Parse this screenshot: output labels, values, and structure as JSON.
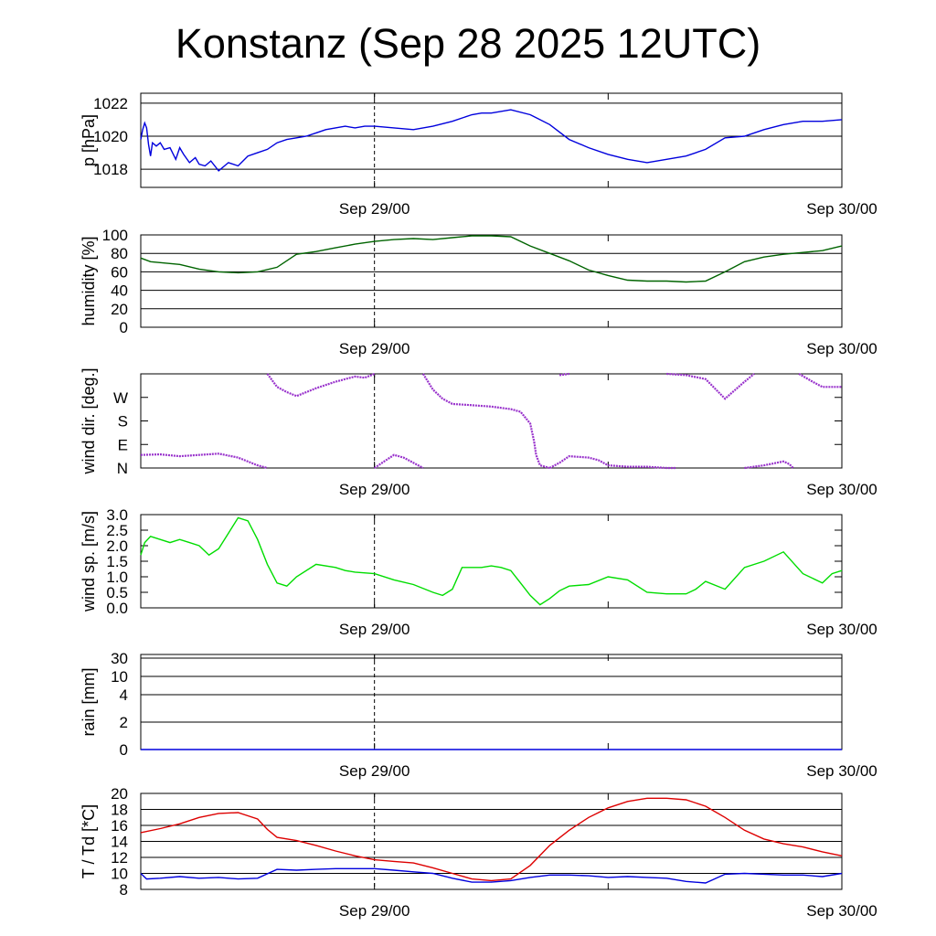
{
  "title": "Konstanz (Sep 28 2025 12UTC)",
  "chart_data": [
    {
      "id": "pressure",
      "type": "line",
      "ylabel": "p [hPa]",
      "x_tick_labels": [
        "Sep 29/00",
        "Sep 30/00"
      ],
      "x_range_hours": [
        0,
        36
      ],
      "ylim": [
        1016.9,
        1022.6
      ],
      "y_ticks": [
        1018,
        1020,
        1022
      ],
      "grid": true,
      "series": [
        {
          "color": "#0000dd",
          "x": [
            0,
            0.1,
            0.2,
            0.3,
            0.4,
            0.5,
            0.6,
            0.8,
            1.0,
            1.2,
            1.5,
            1.8,
            2.0,
            2.2,
            2.5,
            2.8,
            3.0,
            3.3,
            3.6,
            4.0,
            4.5,
            5.0,
            5.5,
            6.0,
            6.5,
            7.0,
            7.5,
            8.0,
            8.5,
            9.0,
            9.5,
            10.0,
            10.5,
            11.0,
            11.5,
            12.0,
            13.0,
            14.0,
            15.0,
            16.0,
            17.0,
            17.5,
            18.0,
            19.0,
            20.0,
            21.0,
            22.0,
            23.0,
            24.0,
            25.0,
            26.0,
            27.0,
            28.0,
            29.0,
            30.0,
            31.0,
            32.0,
            33.0,
            34.0,
            35.0,
            36.0
          ],
          "y": [
            1019.8,
            1020.4,
            1020.8,
            1020.5,
            1019.5,
            1018.8,
            1019.6,
            1019.4,
            1019.6,
            1019.2,
            1019.3,
            1018.6,
            1019.3,
            1018.9,
            1018.4,
            1018.7,
            1018.3,
            1018.2,
            1018.5,
            1017.9,
            1018.4,
            1018.2,
            1018.8,
            1019.0,
            1019.2,
            1019.6,
            1019.8,
            1019.9,
            1020.0,
            1020.2,
            1020.4,
            1020.5,
            1020.6,
            1020.5,
            1020.6,
            1020.6,
            1020.5,
            1020.4,
            1020.6,
            1020.9,
            1021.3,
            1021.4,
            1021.4,
            1021.6,
            1021.3,
            1020.7,
            1019.8,
            1019.3,
            1018.9,
            1018.6,
            1018.4,
            1018.6,
            1018.8,
            1019.2,
            1019.9,
            1020.0,
            1020.4,
            1020.7,
            1020.9,
            1020.9,
            1021.0
          ]
        }
      ]
    },
    {
      "id": "humidity",
      "type": "line",
      "ylabel": "humidity [%]",
      "x_tick_labels": [
        "Sep 29/00",
        "Sep 30/00"
      ],
      "x_range_hours": [
        0,
        36
      ],
      "ylim": [
        0,
        100
      ],
      "y_ticks": [
        0,
        20,
        40,
        60,
        80,
        100
      ],
      "grid": true,
      "series": [
        {
          "color": "#006400",
          "x": [
            0,
            0.5,
            1,
            2,
            3,
            4,
            5,
            6,
            7,
            8,
            9,
            10,
            11,
            12,
            13,
            14,
            15,
            16,
            17,
            18,
            19,
            20,
            21,
            22,
            23,
            24,
            25,
            26,
            27,
            28,
            29,
            30,
            31,
            32,
            33,
            34,
            35,
            36
          ],
          "y": [
            75,
            71,
            70,
            68,
            63,
            60,
            59,
            60,
            65,
            79,
            82,
            86,
            90,
            93,
            95,
            96,
            95,
            97,
            99,
            99,
            98,
            88,
            80,
            72,
            62,
            56,
            51,
            50,
            50,
            49,
            50,
            60,
            71,
            76,
            79,
            81,
            83,
            88
          ]
        }
      ]
    },
    {
      "id": "wind_direction",
      "type": "scatter",
      "ylabel": "wind dir. [deg.]",
      "x_tick_labels": [
        "Sep 29/00",
        "Sep 30/00"
      ],
      "x_range_hours": [
        0,
        36
      ],
      "ylim": [
        0,
        360
      ],
      "y_ticks": [
        0,
        90,
        180,
        270
      ],
      "y_tick_labels": [
        "N",
        "E",
        "S",
        "W"
      ],
      "grid": false,
      "segments": [
        {
          "x": [
            0,
            1,
            2,
            3,
            4,
            5,
            6,
            6.5
          ],
          "y": [
            50,
            52,
            45,
            50,
            55,
            40,
            10,
            0
          ]
        },
        {
          "x": [
            6.5,
            7,
            7.5,
            8,
            9,
            10,
            11,
            11.5,
            12
          ],
          "y": [
            360,
            310,
            290,
            275,
            305,
            330,
            350,
            345,
            360
          ]
        },
        {
          "x": [
            12,
            12.5,
            13,
            13.5,
            14,
            14.5
          ],
          "y": [
            0,
            25,
            50,
            40,
            20,
            0
          ]
        },
        {
          "x": [
            14.5,
            15,
            15.5,
            16,
            17,
            18,
            19,
            19.5,
            20,
            20.2
          ],
          "y": [
            360,
            300,
            265,
            245,
            240,
            235,
            225,
            215,
            170,
            100
          ]
        },
        {
          "x": [
            20.2,
            20.3,
            20.5,
            21
          ],
          "y": [
            100,
            50,
            10,
            0
          ]
        },
        {
          "x": [
            21,
            21.5,
            22,
            23,
            23.5,
            24,
            25,
            26,
            27,
            27.5
          ],
          "y": [
            0,
            20,
            45,
            40,
            30,
            10,
            5,
            5,
            0,
            0
          ]
        },
        {
          "x": [
            21.5,
            22
          ],
          "y": [
            355,
            360
          ]
        },
        {
          "x": [
            27,
            28,
            29,
            30,
            31,
            31.5
          ],
          "y": [
            360,
            355,
            340,
            265,
            330,
            360
          ]
        },
        {
          "x": [
            31,
            32,
            33,
            33.3,
            33.5
          ],
          "y": [
            0,
            10,
            25,
            15,
            0
          ]
        },
        {
          "x": [
            33.8,
            34.5,
            35,
            36
          ],
          "y": [
            360,
            330,
            310,
            310
          ]
        }
      ]
    },
    {
      "id": "wind_speed",
      "type": "line",
      "ylabel": "wind sp. [m/s]",
      "x_tick_labels": [
        "Sep 29/00",
        "Sep 30/00"
      ],
      "x_range_hours": [
        0,
        36
      ],
      "ylim": [
        0,
        3
      ],
      "y_ticks": [
        0.0,
        0.5,
        1.0,
        1.5,
        2.0,
        2.5,
        3.0
      ],
      "grid": false,
      "series": [
        {
          "color": "#00dd00",
          "x": [
            0,
            0.2,
            0.5,
            1,
            1.5,
            2,
            2.5,
            3,
            3.5,
            4,
            4.5,
            5,
            5.5,
            6,
            6.5,
            7,
            7.5,
            8,
            9,
            10,
            10.5,
            11,
            12,
            13,
            14,
            15,
            15.5,
            16,
            16.5,
            17,
            17.5,
            18,
            18.5,
            19,
            19.5,
            20,
            20.5,
            21,
            21.5,
            22,
            23,
            24,
            25,
            26,
            27,
            28,
            28.5,
            29,
            30,
            31,
            32,
            33,
            34,
            35,
            35.5,
            36
          ],
          "y": [
            1.7,
            2.1,
            2.3,
            2.2,
            2.1,
            2.2,
            2.1,
            2.0,
            1.7,
            1.9,
            2.4,
            2.9,
            2.8,
            2.2,
            1.4,
            0.8,
            0.7,
            1.0,
            1.4,
            1.3,
            1.2,
            1.15,
            1.1,
            0.9,
            0.75,
            0.5,
            0.4,
            0.6,
            1.3,
            1.3,
            1.3,
            1.35,
            1.3,
            1.2,
            0.8,
            0.4,
            0.1,
            0.3,
            0.55,
            0.7,
            0.75,
            1.0,
            0.9,
            0.5,
            0.45,
            0.45,
            0.6,
            0.85,
            0.6,
            1.3,
            1.5,
            1.8,
            1.1,
            0.8,
            1.1,
            1.2
          ]
        }
      ]
    },
    {
      "id": "rain",
      "type": "line",
      "ylabel": "rain [mm]",
      "x_tick_labels": [
        "Sep 29/00",
        "Sep 30/00"
      ],
      "x_range_hours": [
        0,
        36
      ],
      "y_tick_labels": [
        "0",
        "2",
        "4",
        "10",
        "30"
      ],
      "grid": true,
      "series": [
        {
          "color": "#0000dd",
          "x": [
            0,
            36
          ],
          "y": [
            0,
            0
          ]
        }
      ]
    },
    {
      "id": "temperature",
      "type": "line",
      "ylabel": "T / Td [*C]",
      "x_tick_labels": [
        "Sep 29/00",
        "Sep 30/00"
      ],
      "x_range_hours": [
        0,
        36
      ],
      "ylim": [
        8,
        20
      ],
      "y_ticks": [
        8,
        10,
        12,
        14,
        16,
        18,
        20
      ],
      "grid": true,
      "series": [
        {
          "color": "#dd0000",
          "x": [
            0,
            1,
            2,
            3,
            4,
            5,
            6,
            6.5,
            7,
            8,
            9,
            10,
            11,
            12,
            13,
            14,
            15,
            16,
            17,
            18,
            19,
            20,
            21,
            22,
            23,
            24,
            25,
            26,
            27,
            28,
            29,
            30,
            31,
            32,
            33,
            34,
            35,
            36
          ],
          "y": [
            15.1,
            15.6,
            16.2,
            17.0,
            17.5,
            17.6,
            16.8,
            15.5,
            14.5,
            14.1,
            13.5,
            12.8,
            12.2,
            11.7,
            11.5,
            11.3,
            10.7,
            10.0,
            9.3,
            9.1,
            9.3,
            11.0,
            13.5,
            15.4,
            17.0,
            18.2,
            19.0,
            19.4,
            19.4,
            19.2,
            18.4,
            17.0,
            15.4,
            14.3,
            13.7,
            13.3,
            12.7,
            12.2
          ]
        },
        {
          "color": "#0000dd",
          "x": [
            0,
            0.3,
            1,
            2,
            3,
            4,
            5,
            6,
            7,
            8,
            9,
            10,
            11,
            12,
            13,
            14,
            15,
            16,
            17,
            18,
            19,
            20,
            21,
            22,
            23,
            24,
            25,
            26,
            27,
            28,
            29,
            30,
            31,
            32,
            33,
            34,
            35,
            36
          ],
          "y": [
            10.0,
            9.3,
            9.4,
            9.6,
            9.4,
            9.5,
            9.3,
            9.4,
            10.5,
            10.4,
            10.5,
            10.6,
            10.6,
            10.6,
            10.4,
            10.2,
            10.0,
            9.4,
            8.9,
            8.9,
            9.1,
            9.5,
            9.8,
            9.8,
            9.7,
            9.5,
            9.6,
            9.5,
            9.4,
            9.0,
            8.8,
            9.9,
            10.0,
            9.9,
            9.8,
            9.8,
            9.6,
            10.0
          ]
        }
      ]
    }
  ]
}
